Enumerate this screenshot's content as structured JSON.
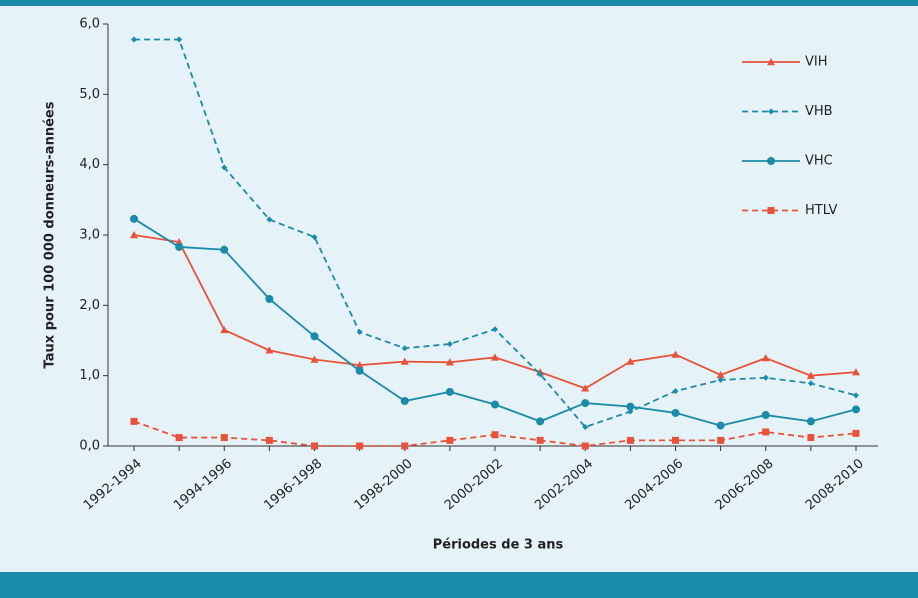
{
  "chart_data": {
    "type": "line",
    "x_label": "Périodes de 3 ans",
    "y_label": "Taux pour 100 000 donneurs-années",
    "categories": [
      "1992-1994",
      null,
      "1994-1996",
      null,
      "1996-1998",
      null,
      "1998-2000",
      null,
      "2000-2002",
      null,
      "2002-2004",
      null,
      "2004-2006",
      null,
      "2006-2008",
      null,
      "2008-2010"
    ],
    "series": [
      {
        "name": "VIH",
        "color": "#e8513a",
        "dashed": false,
        "marker": "triangle",
        "values": [
          3.0,
          2.9,
          1.65,
          1.36,
          1.23,
          1.15,
          1.2,
          1.19,
          1.26,
          1.05,
          0.82,
          1.2,
          1.3,
          1.01,
          1.25,
          1.0,
          1.05
        ]
      },
      {
        "name": "VHB",
        "color": "#1a8ba8",
        "dashed": true,
        "marker": "diamond",
        "values": [
          5.78,
          5.78,
          3.96,
          3.22,
          2.97,
          1.62,
          1.39,
          1.45,
          1.66,
          1.02,
          0.27,
          0.49,
          0.78,
          0.94,
          0.97,
          0.89,
          0.72
        ]
      },
      {
        "name": "VHC",
        "color": "#1a8ba8",
        "dashed": false,
        "marker": "circle",
        "values": [
          3.23,
          2.83,
          2.79,
          2.09,
          1.56,
          1.07,
          0.64,
          0.77,
          0.59,
          0.35,
          0.61,
          0.56,
          0.47,
          0.29,
          0.44,
          0.35,
          0.52
        ]
      },
      {
        "name": "HTLV",
        "color": "#e8513a",
        "dashed": true,
        "marker": "square",
        "values": [
          0.35,
          0.12,
          0.12,
          0.08,
          0.0,
          0.0,
          0.0,
          0.08,
          0.16,
          0.08,
          0.0,
          0.08,
          0.08,
          0.08,
          0.2,
          0.12,
          0.18
        ]
      }
    ],
    "ylim": [
      0,
      6
    ],
    "yticks": [
      {
        "value": 0,
        "label": "0,0"
      },
      {
        "value": 1,
        "label": "1,0"
      },
      {
        "value": 2,
        "label": "2,0"
      },
      {
        "value": 3,
        "label": "3,0"
      },
      {
        "value": 4,
        "label": "4,0"
      },
      {
        "value": 5,
        "label": "5,0"
      },
      {
        "value": 6,
        "label": "6,0"
      }
    ],
    "legend": "right",
    "grid": false
  }
}
